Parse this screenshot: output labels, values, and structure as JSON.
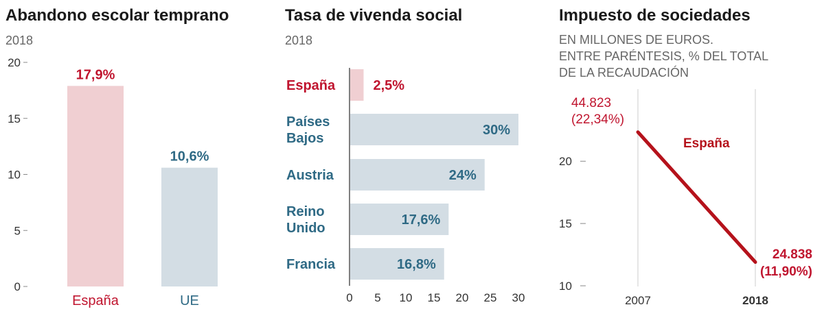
{
  "colors": {
    "red": "#c0152f",
    "red_light": "#f0cfd2",
    "blue": "#2f6a85",
    "blue_light": "#d3dde4",
    "line": "#b5121b"
  },
  "chart_data": [
    {
      "type": "bar",
      "title": "Abandono escolar temprano",
      "subtitle": "2018",
      "categories": [
        "España",
        "UE"
      ],
      "values": [
        17.9,
        10.6
      ],
      "value_labels": [
        "17,9%",
        "10,6%"
      ],
      "ylim": [
        0,
        20
      ],
      "yticks": [
        "0",
        "5",
        "10",
        "15",
        "20"
      ],
      "grid": false
    },
    {
      "type": "bar",
      "orientation": "horizontal",
      "title": "Tasa de vivenda social",
      "subtitle": "2018",
      "categories": [
        [
          "España"
        ],
        [
          "Países",
          "Bajos"
        ],
        [
          "Austria"
        ],
        [
          "Reino",
          "Unido"
        ],
        [
          "Francia"
        ]
      ],
      "values": [
        2.5,
        30,
        24,
        17.6,
        16.8
      ],
      "value_labels": [
        "2,5%",
        "30%",
        "24%",
        "17,6%",
        "16,8%"
      ],
      "xlim": [
        0,
        31
      ],
      "xticks": [
        "0",
        "5",
        "10",
        "15",
        "20",
        "25",
        "30"
      ],
      "grid": false
    },
    {
      "type": "line",
      "title": "Impuesto de sociedades",
      "subtitle_lines": [
        "EN MILLONES DE EUROS.",
        "ENTRE PARÉNTESIS, % DEL TOTAL",
        "DE LA RECAUDACIÓN"
      ],
      "x": [
        "2007",
        "2018"
      ],
      "series": [
        {
          "name": "España",
          "values": [
            22.34,
            11.9
          ],
          "point_labels": [
            [
              "44.823",
              "(22,34%)"
            ],
            [
              "24.838",
              "(11,90%)"
            ]
          ]
        }
      ],
      "ylim": [
        10,
        24.8
      ],
      "yticks": [
        "10",
        "15",
        "20"
      ],
      "grid": true
    }
  ]
}
